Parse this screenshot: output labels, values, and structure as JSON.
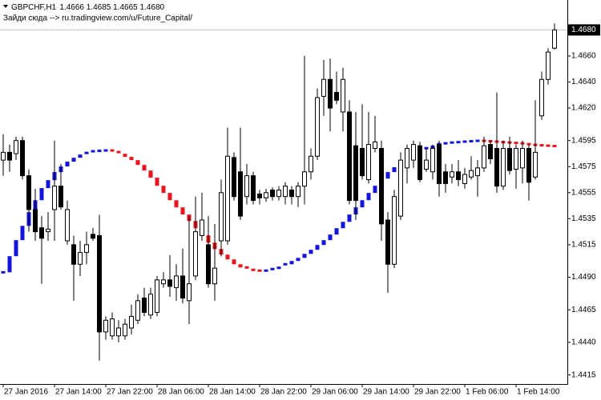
{
  "chart_data": {
    "type": "candlestick",
    "title": "GBPCHF,H1",
    "subtitle": "1.4666 1.4685 1.4665 1.4680",
    "annotation": "Зайди сюда --> ru.tradingview.com/u/Future_Capital/",
    "categories": [
      "27 Jan 2016",
      null,
      null,
      null,
      null,
      null,
      null,
      null,
      "27 Jan 14:00",
      null,
      null,
      null,
      null,
      null,
      null,
      null,
      "27 Jan 22:00",
      null,
      null,
      null,
      null,
      null,
      null,
      null,
      "28 Jan 06:00",
      null,
      null,
      null,
      null,
      null,
      null,
      null,
      "28 Jan 14:00",
      null,
      null,
      null,
      null,
      null,
      null,
      null,
      "28 Jan 22:00",
      null,
      null,
      null,
      null,
      null,
      null,
      null,
      "29 Jan 06:00",
      null,
      null,
      null,
      null,
      null,
      null,
      null,
      "29 Jan 14:00",
      null,
      null,
      null,
      null,
      null,
      null,
      null,
      "29 Jan 22:00",
      null,
      null,
      null,
      null,
      null,
      null,
      null,
      "1 Feb 06:00",
      null,
      null,
      null,
      null,
      null,
      null,
      null,
      "1 Feb 14:00",
      null,
      null,
      null,
      null,
      null,
      null
    ],
    "open": [
      1.458,
      1.4586,
      1.4585,
      1.4595,
      1.4568,
      1.4542,
      1.4528,
      1.4525,
      1.4542,
      1.456,
      1.4518,
      1.4515,
      1.45,
      1.4509,
      1.4523,
      1.4522,
      1.4448,
      1.4445,
      1.4445,
      1.4445,
      1.4451,
      1.4457,
      1.4474,
      1.4461,
      1.4463,
      1.4485,
      1.4488,
      1.4482,
      1.4491,
      1.4472,
      1.4491,
      1.4522,
      1.4515,
      1.4485,
      1.4518,
      1.4518,
      1.4582,
      1.4571,
      1.4552,
      1.4568,
      1.4554,
      1.4551,
      1.4557,
      1.4552,
      1.4552,
      1.4557,
      1.4552,
      1.456,
      1.4571,
      1.4583,
      1.4629,
      1.4642,
      1.4632,
      1.4617,
      1.4617,
      1.4591,
      1.4589,
      1.4565,
      1.4589,
      1.4589,
      1.4534,
      1.45,
      1.4537,
      1.4574,
      1.458,
      1.4591,
      1.4573,
      1.4571,
      1.4592,
      1.4571,
      1.4567,
      1.4571,
      1.4562,
      1.4567,
      1.4568,
      1.4574,
      1.4592,
      1.4589,
      1.456,
      1.4589,
      1.4573,
      1.4574,
      1.4589,
      1.4567,
      1.4614,
      1.4642,
      1.4666
    ],
    "high": [
      1.46,
      1.4592,
      1.4598,
      1.4598,
      1.4573,
      1.4558,
      1.4537,
      1.454,
      1.4595,
      1.4577,
      1.4549,
      1.4522,
      1.4518,
      1.4525,
      1.4528,
      1.4538,
      1.446,
      1.4463,
      1.4457,
      1.4458,
      1.4469,
      1.4477,
      1.4482,
      1.4482,
      1.4491,
      1.4494,
      1.4507,
      1.45,
      1.4512,
      1.4537,
      1.4552,
      1.4555,
      1.4537,
      1.4531,
      1.4565,
      1.4605,
      1.4586,
      1.4605,
      1.4577,
      1.4571,
      1.4557,
      1.4558,
      1.4559,
      1.456,
      1.4563,
      1.456,
      1.4563,
      1.466,
      1.4589,
      1.4635,
      1.4657,
      1.4658,
      1.4648,
      1.4651,
      1.4626,
      1.4617,
      1.4623,
      1.4617,
      1.4614,
      1.4595,
      1.454,
      1.4557,
      1.4586,
      1.4592,
      1.4595,
      1.4594,
      1.4589,
      1.4592,
      1.4595,
      1.4577,
      1.4577,
      1.458,
      1.4574,
      1.4583,
      1.458,
      1.4598,
      1.4595,
      1.4632,
      1.4595,
      1.4598,
      1.4592,
      1.4595,
      1.4592,
      1.4626,
      1.4648,
      1.4666,
      1.4685
    ],
    "low": [
      1.4568,
      1.4571,
      1.458,
      1.4565,
      1.4525,
      1.4518,
      1.4485,
      1.4518,
      1.4518,
      1.4542,
      1.4515,
      1.4472,
      1.4491,
      1.45,
      1.4518,
      1.4426,
      1.4442,
      1.4442,
      1.444,
      1.4442,
      1.4446,
      1.4454,
      1.446,
      1.4458,
      1.446,
      1.4482,
      1.4475,
      1.4472,
      1.447,
      1.4454,
      1.4488,
      1.4518,
      1.4482,
      1.4472,
      1.4506,
      1.4515,
      1.4549,
      1.4534,
      1.4546,
      1.4546,
      1.4546,
      1.4548,
      1.4549,
      1.4549,
      1.4546,
      1.4546,
      1.4544,
      1.4546,
      1.4565,
      1.458,
      1.4614,
      1.4602,
      1.4623,
      1.4602,
      1.4546,
      1.4534,
      1.4565,
      1.4562,
      1.4586,
      1.4518,
      1.4478,
      1.4497,
      1.4534,
      1.4562,
      1.4574,
      1.4563,
      1.4571,
      1.4565,
      1.4552,
      1.4555,
      1.4562,
      1.456,
      1.4558,
      1.4565,
      1.4552,
      1.4571,
      1.4577,
      1.4555,
      1.4557,
      1.4569,
      1.4558,
      1.4562,
      1.4549,
      1.4565,
      1.4611,
      1.4638,
      1.4665
    ],
    "close": [
      1.4586,
      1.458,
      1.4595,
      1.4568,
      1.4542,
      1.4525,
      1.452,
      1.4527,
      1.456,
      1.4544,
      1.4542,
      1.45,
      1.4509,
      1.4515,
      1.452,
      1.4448,
      1.4457,
      1.4458,
      1.4451,
      1.4454,
      1.446,
      1.4472,
      1.4463,
      1.4477,
      1.4488,
      1.4488,
      1.4483,
      1.4491,
      1.4474,
      1.4485,
      1.4525,
      1.4534,
      1.4485,
      1.4497,
      1.4555,
      1.4583,
      1.4552,
      1.4537,
      1.4568,
      1.4549,
      1.4551,
      1.4555,
      1.4552,
      1.4557,
      1.456,
      1.4552,
      1.456,
      1.4571,
      1.4583,
      1.4628,
      1.4642,
      1.462,
      1.4626,
      1.4642,
      1.4549,
      1.4549,
      1.4568,
      1.4592,
      1.4594,
      1.4531,
      1.45,
      1.4552,
      1.458,
      1.4589,
      1.4592,
      1.4565,
      1.458,
      1.4589,
      1.4562,
      1.4562,
      1.4571,
      1.4565,
      1.4569,
      1.4572,
      1.4574,
      1.4591,
      1.4581,
      1.456,
      1.4589,
      1.4572,
      1.4589,
      1.4589,
      1.4563,
      1.4586,
      1.4642,
      1.4663,
      1.468
    ],
    "up_candle_color": "#ffffff",
    "down_candle_color": "#000000",
    "indicator": {
      "values": [
        1.44938,
        1.45062,
        1.45185,
        1.45295,
        1.454,
        1.45492,
        1.45585,
        1.45646,
        1.45708,
        1.45751,
        1.45788,
        1.45818,
        1.45843,
        1.45855,
        1.45868,
        1.45871,
        1.45874,
        1.45862,
        1.45849,
        1.45825,
        1.458,
        1.45763,
        1.4572,
        1.45665,
        1.45603,
        1.45548,
        1.45492,
        1.45437,
        1.45382,
        1.45332,
        1.45277,
        1.45222,
        1.45166,
        1.45117,
        1.45074,
        1.45037,
        1.45,
        1.44975,
        1.44957,
        1.44951,
        1.44945,
        1.44951,
        1.44963,
        1.44982,
        1.45,
        1.45025,
        1.45049,
        1.4508,
        1.45111,
        1.45148,
        1.45185,
        1.45228,
        1.45277,
        1.45326,
        1.45382,
        1.45437,
        1.45492,
        1.45548,
        1.45603,
        1.45658,
        1.45708,
        1.45745,
        1.45782,
        1.45818,
        1.45849,
        1.45874,
        1.45892,
        1.45911,
        1.45923,
        1.45929,
        1.45935,
        1.45938,
        1.45942,
        1.45945,
        1.45948,
        1.45945,
        1.45942,
        1.45938,
        1.45935,
        1.45932,
        1.45929,
        1.45923,
        1.45917,
        1.45914,
        1.45911,
        1.45908,
        1.45905
      ],
      "up_color": "#1414dc",
      "down_color": "#e8141e"
    },
    "current_price": {
      "value": 1.468,
      "label": "1.4680"
    },
    "ylim": [
      1.4408,
      1.4703
    ],
    "yticks": [
      {
        "value": 1.466,
        "label": "1.4660"
      },
      {
        "value": 1.464,
        "label": "1.4640"
      },
      {
        "value": 1.462,
        "label": "1.4620"
      },
      {
        "value": 1.4595,
        "label": "1.4595"
      },
      {
        "value": 1.4575,
        "label": "1.4575"
      },
      {
        "value": 1.4555,
        "label": "1.4555"
      },
      {
        "value": 1.4535,
        "label": "1.4535"
      },
      {
        "value": 1.4515,
        "label": "1.4515"
      },
      {
        "value": 1.449,
        "label": "1.4490"
      },
      {
        "value": 1.4465,
        "label": "1.4465"
      },
      {
        "value": 1.444,
        "label": "1.4440"
      },
      {
        "value": 1.4415,
        "label": "1.4415"
      }
    ],
    "grid": false
  }
}
